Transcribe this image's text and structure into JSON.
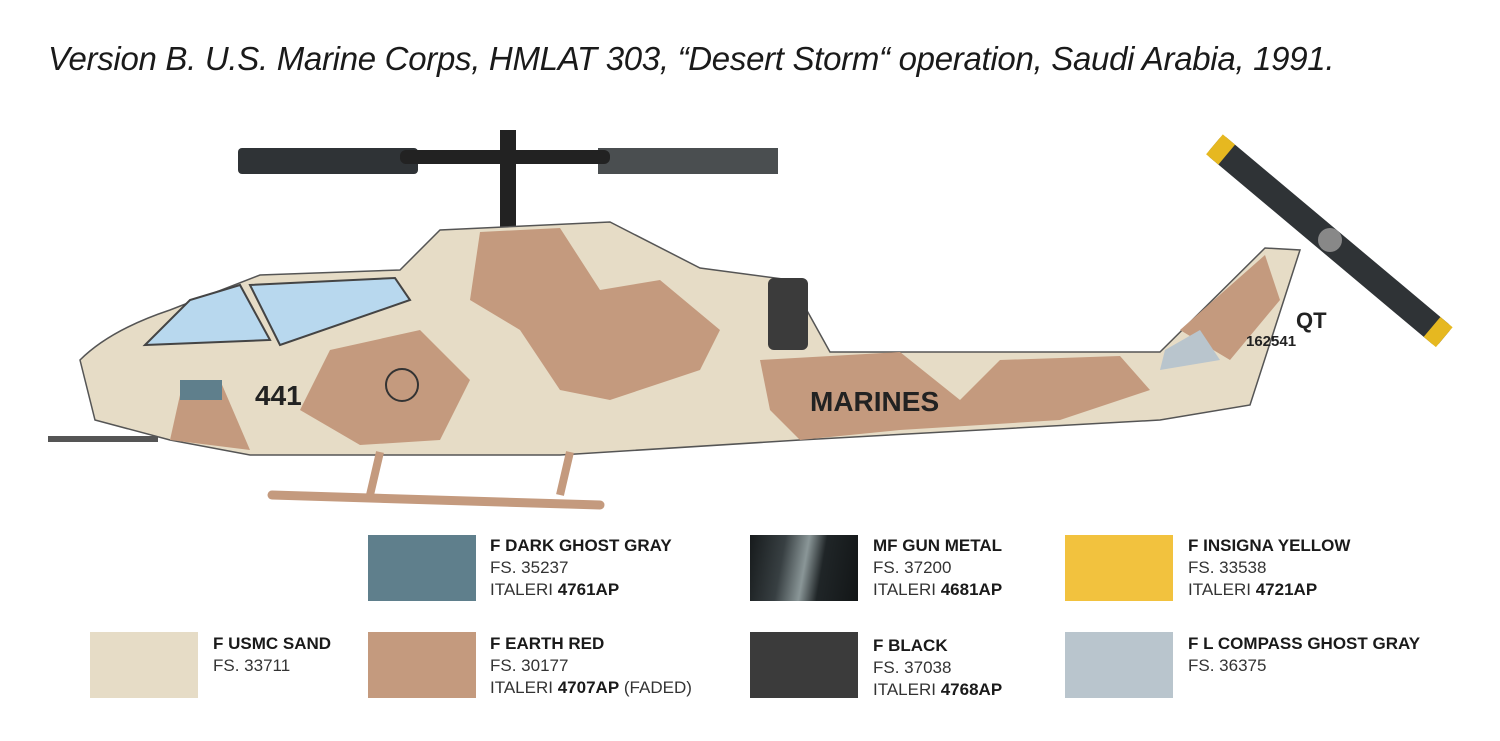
{
  "title": "Version B. U.S. Marine Corps, HMLAT 303, “Desert Storm“ operation, Saudi Arabia, 1991.",
  "markings": {
    "nose_number": "441",
    "side": "MARINES",
    "tail_code": "QT",
    "serial": "162541"
  },
  "swatches": [
    {
      "name": "F DARK GHOST GRAY",
      "fs": "FS. 35237",
      "italeri": "ITALERI",
      "code": "4761AP",
      "color": "#5f7f8c"
    },
    {
      "name": "MF GUN METAL",
      "fs": "FS. 37200",
      "italeri": "ITALERI",
      "code": "4681AP",
      "color": "#2d3538"
    },
    {
      "name": "F INSIGNA YELLOW",
      "fs": "FS. 33538",
      "italeri": "ITALERI",
      "code": "4721AP",
      "color": "#f2c23e"
    },
    {
      "name": "F USMC SAND",
      "fs": "FS. 33711",
      "color": "#e6dcc6"
    },
    {
      "name": "F EARTH RED",
      "fs": "FS. 30177",
      "italeri": "ITALERI",
      "code": "4707AP",
      "note": "(FADED)",
      "color": "#c49a7e"
    },
    {
      "name": "F BLACK",
      "fs": "FS. 37038",
      "italeri": "ITALERI",
      "code": "4768AP",
      "color": "#3b3b3b"
    },
    {
      "name": "F L COMPASS GHOST GRAY",
      "fs": "FS. 36375",
      "color": "#b9c5cd"
    }
  ]
}
